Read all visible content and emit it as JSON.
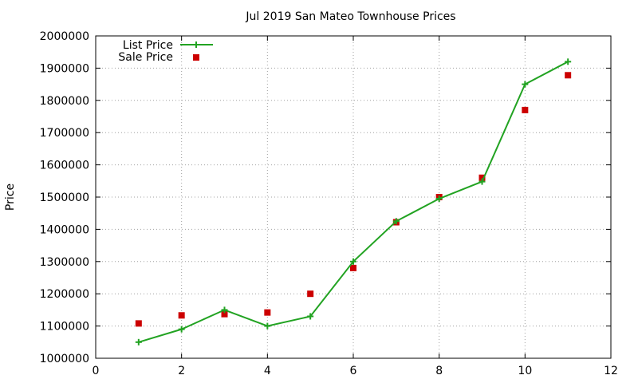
{
  "chart_data": {
    "type": "line",
    "title": "Jul 2019 San Mateo Townhouse Prices",
    "xlabel": "",
    "ylabel": "Price",
    "xlim": [
      0,
      12
    ],
    "ylim": [
      1000000,
      2000000
    ],
    "xticks": [
      0,
      2,
      4,
      6,
      8,
      10,
      12
    ],
    "yticks": [
      1000000,
      1100000,
      1200000,
      1300000,
      1400000,
      1500000,
      1600000,
      1700000,
      1800000,
      1900000,
      2000000
    ],
    "grid": true,
    "legend_position": "top-left",
    "series": [
      {
        "name": "List Price",
        "style": "line-with-plus-markers",
        "color": "#22a322",
        "x": [
          1,
          2,
          3,
          4,
          5,
          6,
          7,
          8,
          9,
          10,
          11
        ],
        "y": [
          1050000,
          1090000,
          1150000,
          1100000,
          1130000,
          1300000,
          1425000,
          1495000,
          1548000,
          1850000,
          1920000
        ]
      },
      {
        "name": "Sale Price",
        "style": "square-markers",
        "color": "#cc0000",
        "x": [
          1,
          2,
          3,
          4,
          5,
          6,
          7,
          8,
          9,
          10,
          11
        ],
        "y": [
          1108000,
          1133000,
          1137000,
          1142000,
          1200000,
          1280000,
          1422000,
          1500000,
          1560000,
          1770000,
          1878000
        ]
      }
    ]
  }
}
